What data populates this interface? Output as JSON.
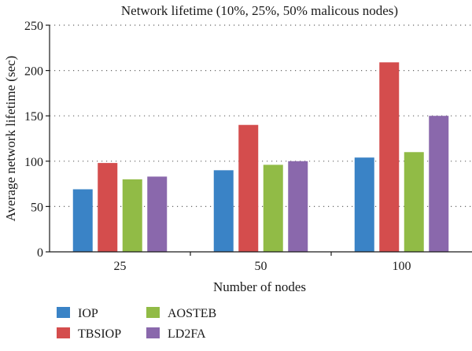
{
  "chart_data": {
    "type": "bar",
    "title": "Network lifetime (10%, 25%, 50% malicous nodes)",
    "xlabel": "Number of nodes",
    "ylabel": "Average network lifetime (sec)",
    "ylim": [
      0,
      250
    ],
    "yticks": [
      0,
      50,
      100,
      150,
      200,
      250
    ],
    "grid": "horizontal dotted",
    "categories": [
      "25",
      "50",
      "100"
    ],
    "series": [
      {
        "name": "IOP",
        "color": "#3a83c6",
        "values": [
          69,
          90,
          104
        ]
      },
      {
        "name": "TBSIOP",
        "color": "#d44d4d",
        "values": [
          98,
          140,
          209
        ]
      },
      {
        "name": "AOSTEB",
        "color": "#91bb46",
        "values": [
          80,
          96,
          110
        ]
      },
      {
        "name": "LD2FA",
        "color": "#8a68ac",
        "values": [
          83,
          100,
          150
        ]
      }
    ],
    "legend_position": "bottom-left"
  }
}
